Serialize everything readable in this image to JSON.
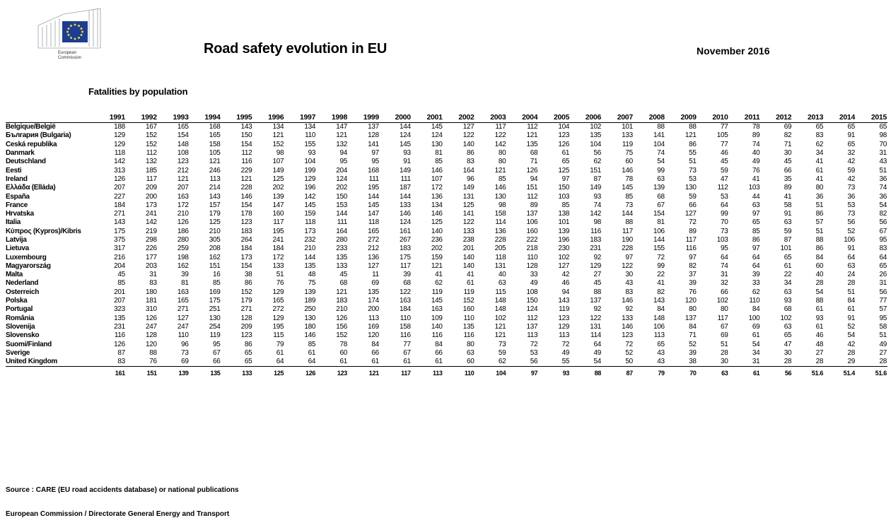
{
  "header": {
    "logo_text": [
      "European",
      "Commission"
    ],
    "title": "Road safety evolution in EU",
    "date": "November 2016",
    "subtitle": "Fatalities by population"
  },
  "table": {
    "years": [
      "1991",
      "1992",
      "1993",
      "1994",
      "1995",
      "1996",
      "1997",
      "1998",
      "1999",
      "2000",
      "2001",
      "2002",
      "2003",
      "2004",
      "2005",
      "2006",
      "2007",
      "2008",
      "2009",
      "2010",
      "2011",
      "2012",
      "2013",
      "2014",
      "2015"
    ],
    "rows": [
      {
        "name": "Belgique/België",
        "values": [
          "188",
          "167",
          "165",
          "168",
          "143",
          "134",
          "134",
          "147",
          "137",
          "144",
          "145",
          "127",
          "117",
          "112",
          "104",
          "102",
          "101",
          "88",
          "88",
          "77",
          "78",
          "69",
          "65",
          "65",
          "65"
        ]
      },
      {
        "name": "България (Bulgaria)",
        "values": [
          "129",
          "152",
          "154",
          "165",
          "150",
          "121",
          "110",
          "121",
          "128",
          "124",
          "124",
          "122",
          "122",
          "121",
          "123",
          "135",
          "133",
          "141",
          "121",
          "105",
          "89",
          "82",
          "83",
          "91",
          "98"
        ]
      },
      {
        "name": "Česká republika",
        "values": [
          "129",
          "152",
          "148",
          "158",
          "154",
          "152",
          "155",
          "132",
          "141",
          "145",
          "130",
          "140",
          "142",
          "135",
          "126",
          "104",
          "119",
          "104",
          "86",
          "77",
          "74",
          "71",
          "62",
          "65",
          "70"
        ]
      },
      {
        "name": "Danmark",
        "values": [
          "118",
          "112",
          "108",
          "105",
          "112",
          "98",
          "93",
          "94",
          "97",
          "93",
          "81",
          "86",
          "80",
          "68",
          "61",
          "56",
          "75",
          "74",
          "55",
          "46",
          "40",
          "30",
          "34",
          "32",
          "31"
        ]
      },
      {
        "name": "Deutschland",
        "values": [
          "142",
          "132",
          "123",
          "121",
          "116",
          "107",
          "104",
          "95",
          "95",
          "91",
          "85",
          "83",
          "80",
          "71",
          "65",
          "62",
          "60",
          "54",
          "51",
          "45",
          "49",
          "45",
          "41",
          "42",
          "43"
        ]
      },
      {
        "name": "Eesti",
        "values": [
          "313",
          "185",
          "212",
          "246",
          "229",
          "149",
          "199",
          "204",
          "168",
          "149",
          "146",
          "164",
          "121",
          "126",
          "125",
          "151",
          "146",
          "99",
          "73",
          "59",
          "76",
          "66",
          "61",
          "59",
          "51"
        ]
      },
      {
        "name": "Ireland",
        "values": [
          "126",
          "117",
          "121",
          "113",
          "121",
          "125",
          "129",
          "124",
          "111",
          "111",
          "107",
          "96",
          "85",
          "94",
          "97",
          "87",
          "78",
          "63",
          "53",
          "47",
          "41",
          "35",
          "41",
          "42",
          "36"
        ]
      },
      {
        "name": "Ελλάδα (Elláda)",
        "values": [
          "207",
          "209",
          "207",
          "214",
          "228",
          "202",
          "196",
          "202",
          "195",
          "187",
          "172",
          "149",
          "146",
          "151",
          "150",
          "149",
          "145",
          "139",
          "130",
          "112",
          "103",
          "89",
          "80",
          "73",
          "74"
        ]
      },
      {
        "name": "España",
        "values": [
          "227",
          "200",
          "163",
          "143",
          "146",
          "139",
          "142",
          "150",
          "144",
          "144",
          "136",
          "131",
          "130",
          "112",
          "103",
          "93",
          "85",
          "68",
          "59",
          "53",
          "44",
          "41",
          "36",
          "36",
          "36"
        ]
      },
      {
        "name": "France",
        "values": [
          "184",
          "173",
          "172",
          "157",
          "154",
          "147",
          "145",
          "153",
          "145",
          "133",
          "134",
          "125",
          "98",
          "89",
          "85",
          "74",
          "73",
          "67",
          "66",
          "64",
          "63",
          "58",
          "51",
          "53",
          "54"
        ]
      },
      {
        "name": "Hrvatska",
        "values": [
          "271",
          "241",
          "210",
          "179",
          "178",
          "160",
          "159",
          "144",
          "147",
          "146",
          "146",
          "141",
          "158",
          "137",
          "138",
          "142",
          "144",
          "154",
          "127",
          "99",
          "97",
          "91",
          "86",
          "73",
          "82"
        ]
      },
      {
        "name": "Italia",
        "values": [
          "143",
          "142",
          "126",
          "125",
          "123",
          "117",
          "118",
          "111",
          "118",
          "124",
          "125",
          "122",
          "114",
          "106",
          "101",
          "98",
          "88",
          "81",
          "72",
          "70",
          "65",
          "63",
          "57",
          "56",
          "56"
        ]
      },
      {
        "name": "Κύπρος (Kypros)/Kibris",
        "values": [
          "175",
          "219",
          "186",
          "210",
          "183",
          "195",
          "173",
          "164",
          "165",
          "161",
          "140",
          "133",
          "136",
          "160",
          "139",
          "116",
          "117",
          "106",
          "89",
          "73",
          "85",
          "59",
          "51",
          "52",
          "67"
        ]
      },
      {
        "name": "Latvija",
        "values": [
          "375",
          "298",
          "280",
          "305",
          "264",
          "241",
          "232",
          "280",
          "272",
          "267",
          "236",
          "238",
          "228",
          "222",
          "196",
          "183",
          "190",
          "144",
          "117",
          "103",
          "86",
          "87",
          "88",
          "106",
          "95"
        ]
      },
      {
        "name": "Lietuva",
        "values": [
          "317",
          "226",
          "259",
          "208",
          "184",
          "184",
          "210",
          "233",
          "212",
          "183",
          "202",
          "201",
          "205",
          "218",
          "230",
          "231",
          "228",
          "155",
          "116",
          "95",
          "97",
          "101",
          "86",
          "91",
          "83"
        ]
      },
      {
        "name": "Luxembourg",
        "values": [
          "216",
          "177",
          "198",
          "162",
          "173",
          "172",
          "144",
          "135",
          "136",
          "175",
          "159",
          "140",
          "118",
          "110",
          "102",
          "92",
          "97",
          "72",
          "97",
          "64",
          "64",
          "65",
          "84",
          "64",
          "64"
        ]
      },
      {
        "name": "Magyarország",
        "values": [
          "204",
          "203",
          "162",
          "151",
          "154",
          "133",
          "135",
          "133",
          "127",
          "117",
          "121",
          "140",
          "131",
          "128",
          "127",
          "129",
          "122",
          "99",
          "82",
          "74",
          "64",
          "61",
          "60",
          "63",
          "65"
        ]
      },
      {
        "name": "Malta",
        "values": [
          "45",
          "31",
          "39",
          "16",
          "38",
          "51",
          "48",
          "45",
          "11",
          "39",
          "41",
          "41",
          "40",
          "33",
          "42",
          "27",
          "30",
          "22",
          "37",
          "31",
          "39",
          "22",
          "40",
          "24",
          "26"
        ]
      },
      {
        "name": "Nederland",
        "values": [
          "85",
          "83",
          "81",
          "85",
          "86",
          "76",
          "75",
          "68",
          "69",
          "68",
          "62",
          "61",
          "63",
          "49",
          "46",
          "45",
          "43",
          "41",
          "39",
          "32",
          "33",
          "34",
          "28",
          "28",
          "31"
        ]
      },
      {
        "name": "Österreich",
        "values": [
          "201",
          "180",
          "163",
          "169",
          "152",
          "129",
          "139",
          "121",
          "135",
          "122",
          "119",
          "119",
          "115",
          "108",
          "94",
          "88",
          "83",
          "82",
          "76",
          "66",
          "62",
          "63",
          "54",
          "51",
          "56"
        ]
      },
      {
        "name": "Polska",
        "values": [
          "207",
          "181",
          "165",
          "175",
          "179",
          "165",
          "189",
          "183",
          "174",
          "163",
          "145",
          "152",
          "148",
          "150",
          "143",
          "137",
          "146",
          "143",
          "120",
          "102",
          "110",
          "93",
          "88",
          "84",
          "77"
        ]
      },
      {
        "name": "Portugal",
        "values": [
          "323",
          "310",
          "271",
          "251",
          "271",
          "272",
          "250",
          "210",
          "200",
          "184",
          "163",
          "160",
          "148",
          "124",
          "119",
          "92",
          "92",
          "84",
          "80",
          "80",
          "84",
          "68",
          "61",
          "61",
          "57"
        ]
      },
      {
        "name": "România",
        "values": [
          "135",
          "126",
          "127",
          "130",
          "128",
          "129",
          "130",
          "126",
          "113",
          "110",
          "109",
          "110",
          "102",
          "112",
          "123",
          "122",
          "133",
          "148",
          "137",
          "117",
          "100",
          "102",
          "93",
          "91",
          "95"
        ]
      },
      {
        "name": "Slovenija",
        "values": [
          "231",
          "247",
          "247",
          "254",
          "209",
          "195",
          "180",
          "156",
          "169",
          "158",
          "140",
          "135",
          "121",
          "137",
          "129",
          "131",
          "146",
          "106",
          "84",
          "67",
          "69",
          "63",
          "61",
          "52",
          "58"
        ]
      },
      {
        "name": "Slovensko",
        "values": [
          "116",
          "128",
          "110",
          "119",
          "123",
          "115",
          "146",
          "152",
          "120",
          "116",
          "116",
          "116",
          "121",
          "113",
          "113",
          "114",
          "123",
          "113",
          "71",
          "69",
          "61",
          "65",
          "46",
          "54",
          "51"
        ]
      },
      {
        "name": "Suomi/Finland",
        "values": [
          "126",
          "120",
          "96",
          "95",
          "86",
          "79",
          "85",
          "78",
          "84",
          "77",
          "84",
          "80",
          "73",
          "72",
          "72",
          "64",
          "72",
          "65",
          "52",
          "51",
          "54",
          "47",
          "48",
          "42",
          "49"
        ]
      },
      {
        "name": "Sverige",
        "values": [
          "87",
          "88",
          "73",
          "67",
          "65",
          "61",
          "61",
          "60",
          "66",
          "67",
          "66",
          "63",
          "59",
          "53",
          "49",
          "49",
          "52",
          "43",
          "39",
          "28",
          "34",
          "30",
          "27",
          "28",
          "27"
        ]
      },
      {
        "name": "United Kingdom",
        "values": [
          "83",
          "76",
          "69",
          "66",
          "65",
          "64",
          "64",
          "61",
          "61",
          "61",
          "61",
          "60",
          "62",
          "56",
          "55",
          "54",
          "50",
          "43",
          "38",
          "30",
          "31",
          "28",
          "28",
          "29",
          "28"
        ]
      }
    ],
    "average": [
      "161",
      "151",
      "139",
      "135",
      "133",
      "125",
      "126",
      "123",
      "121",
      "117",
      "113",
      "110",
      "104",
      "97",
      "93",
      "88",
      "87",
      "79",
      "70",
      "63",
      "61",
      "56",
      "51.6",
      "51.4",
      "51.6"
    ]
  },
  "footer": {
    "source": "Source : CARE (EU road accidents database) or national publications",
    "org": "European Commission / Directorate General Energy and Transport"
  },
  "colors": {
    "flag_blue": "#1b3d9a",
    "flag_star": "#f2d400"
  }
}
